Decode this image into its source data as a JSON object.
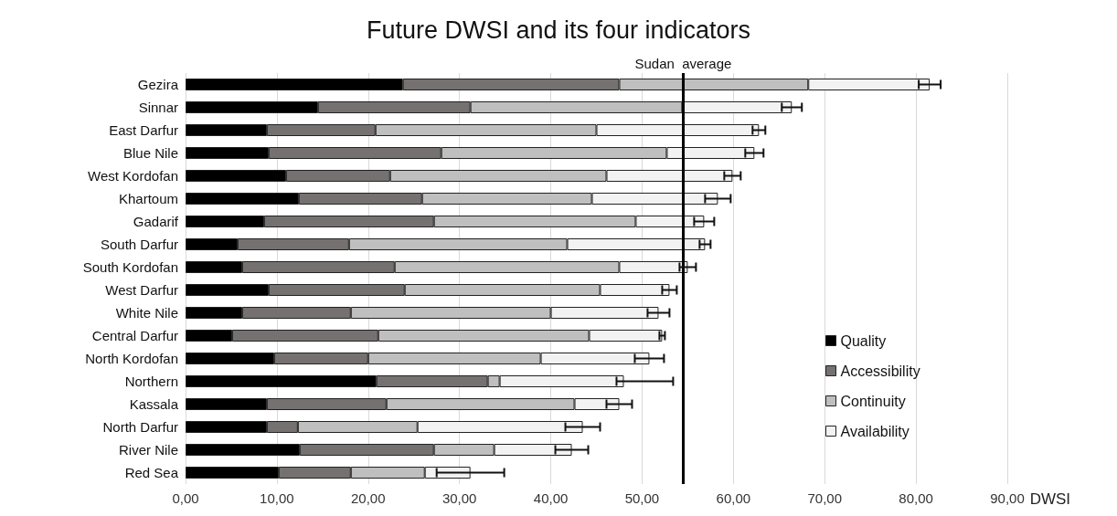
{
  "chart_data": {
    "type": "bar",
    "orientation": "horizontal",
    "stacked": true,
    "title": "Future DWSI and its four indicators",
    "xlabel": "DWSI",
    "categories": [
      "Gezira",
      "Sinnar",
      "East Darfur",
      "Blue Nile",
      "West Kordofan",
      "Khartoum",
      "Gadarif",
      "South Darfur",
      "South Kordofan",
      "West Darfur",
      "White Nile",
      "Central Darfur",
      "North Kordofan",
      "Northern",
      "Kassala",
      "North Darfur",
      "River Nile",
      "Red Sea"
    ],
    "series": [
      {
        "name": "Quality",
        "color": "#000000",
        "values": [
          23.8,
          14.5,
          8.9,
          9.1,
          11.0,
          12.4,
          8.6,
          5.7,
          6.2,
          9.1,
          6.2,
          5.1,
          9.7,
          20.9,
          8.9,
          8.9,
          12.5,
          10.2
        ]
      },
      {
        "name": "Accessibility",
        "color": "#767171",
        "values": [
          23.7,
          16.7,
          11.9,
          18.9,
          11.4,
          13.5,
          18.6,
          12.2,
          16.7,
          14.9,
          11.9,
          16.0,
          10.3,
          12.2,
          13.1,
          3.4,
          14.7,
          7.9
        ]
      },
      {
        "name": "Continuity",
        "color": "#bfbfbf",
        "values": [
          20.7,
          23.2,
          24.2,
          24.7,
          23.7,
          18.6,
          22.1,
          23.9,
          24.6,
          21.4,
          21.9,
          23.1,
          18.9,
          1.3,
          20.6,
          13.1,
          6.6,
          8.1
        ]
      },
      {
        "name": "Availability",
        "color": "#f2f2f2",
        "values": [
          13.3,
          12.0,
          17.8,
          9.6,
          13.8,
          13.8,
          7.5,
          15.1,
          7.5,
          7.6,
          11.8,
          8.0,
          11.9,
          13.6,
          4.9,
          18.1,
          8.5,
          5.0
        ],
        "errors": [
          1.2,
          1.1,
          0.7,
          1.0,
          0.9,
          1.4,
          1.1,
          0.6,
          0.9,
          0.8,
          1.2,
          0.3,
          1.6,
          [
            47.2,
            53.4
          ],
          1.4,
          1.9,
          1.8,
          3.7
        ]
      }
    ],
    "xlim": [
      0,
      90
    ],
    "xticks": [
      {
        "value": 0,
        "label": "0,00"
      },
      {
        "value": 10,
        "label": "10,00"
      },
      {
        "value": 20,
        "label": "20,00"
      },
      {
        "value": 30,
        "label": "30,00"
      },
      {
        "value": 40,
        "label": "40,00"
      },
      {
        "value": 50,
        "label": "50,00"
      },
      {
        "value": 60,
        "label": "60,00"
      },
      {
        "value": 70,
        "label": "70,00"
      },
      {
        "value": 80,
        "label": "80,00"
      },
      {
        "value": 90,
        "label": "90,00"
      }
    ],
    "ref_lines": [
      {
        "axis": "x",
        "value": 54.5,
        "label": "Sudan  average",
        "color": "#000000"
      }
    ],
    "grid": "x",
    "legend": "right"
  }
}
